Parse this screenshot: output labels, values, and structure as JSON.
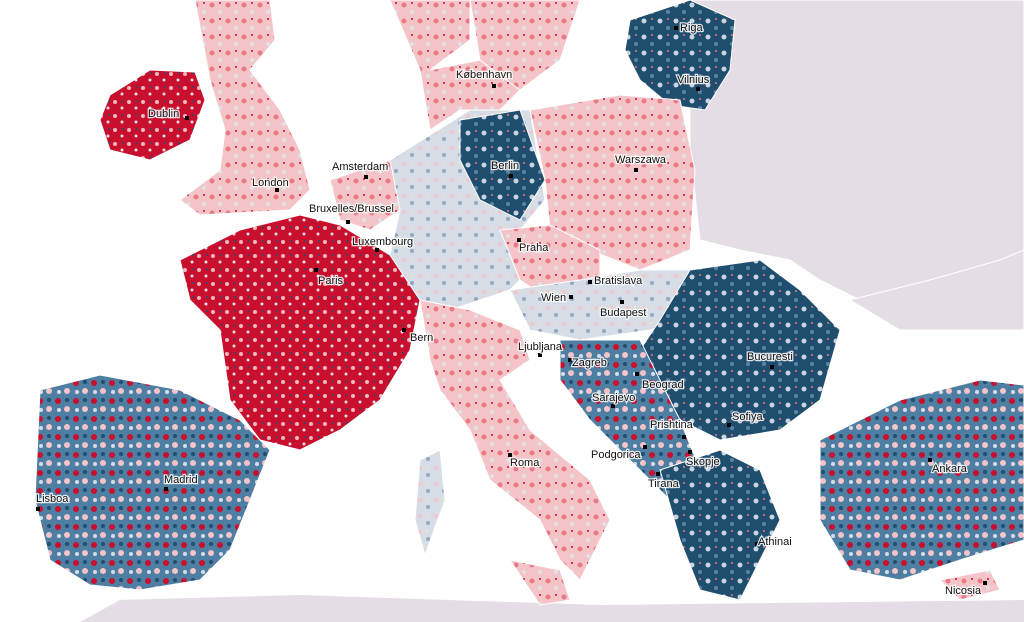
{
  "map": {
    "cities": [
      "Dublin",
      "London",
      "Amsterdam",
      "Bruxelles/Brussel",
      "Luxembourg",
      "Paris",
      "Bern",
      "København",
      "Berlin",
      "Praha",
      "Warszawa",
      "Riga",
      "Vilnius",
      "Wien",
      "Bratislava",
      "Budapest",
      "Ljubljana",
      "Zagreb",
      "Bucuresti",
      "Beograd",
      "Sarajevo",
      "Sofiya",
      "Prishtina",
      "Podgorica",
      "Skopje",
      "Tirana",
      "Roma",
      "Madrid",
      "Lisboa",
      "Athinai",
      "Ankara",
      "Nicosia"
    ]
  }
}
